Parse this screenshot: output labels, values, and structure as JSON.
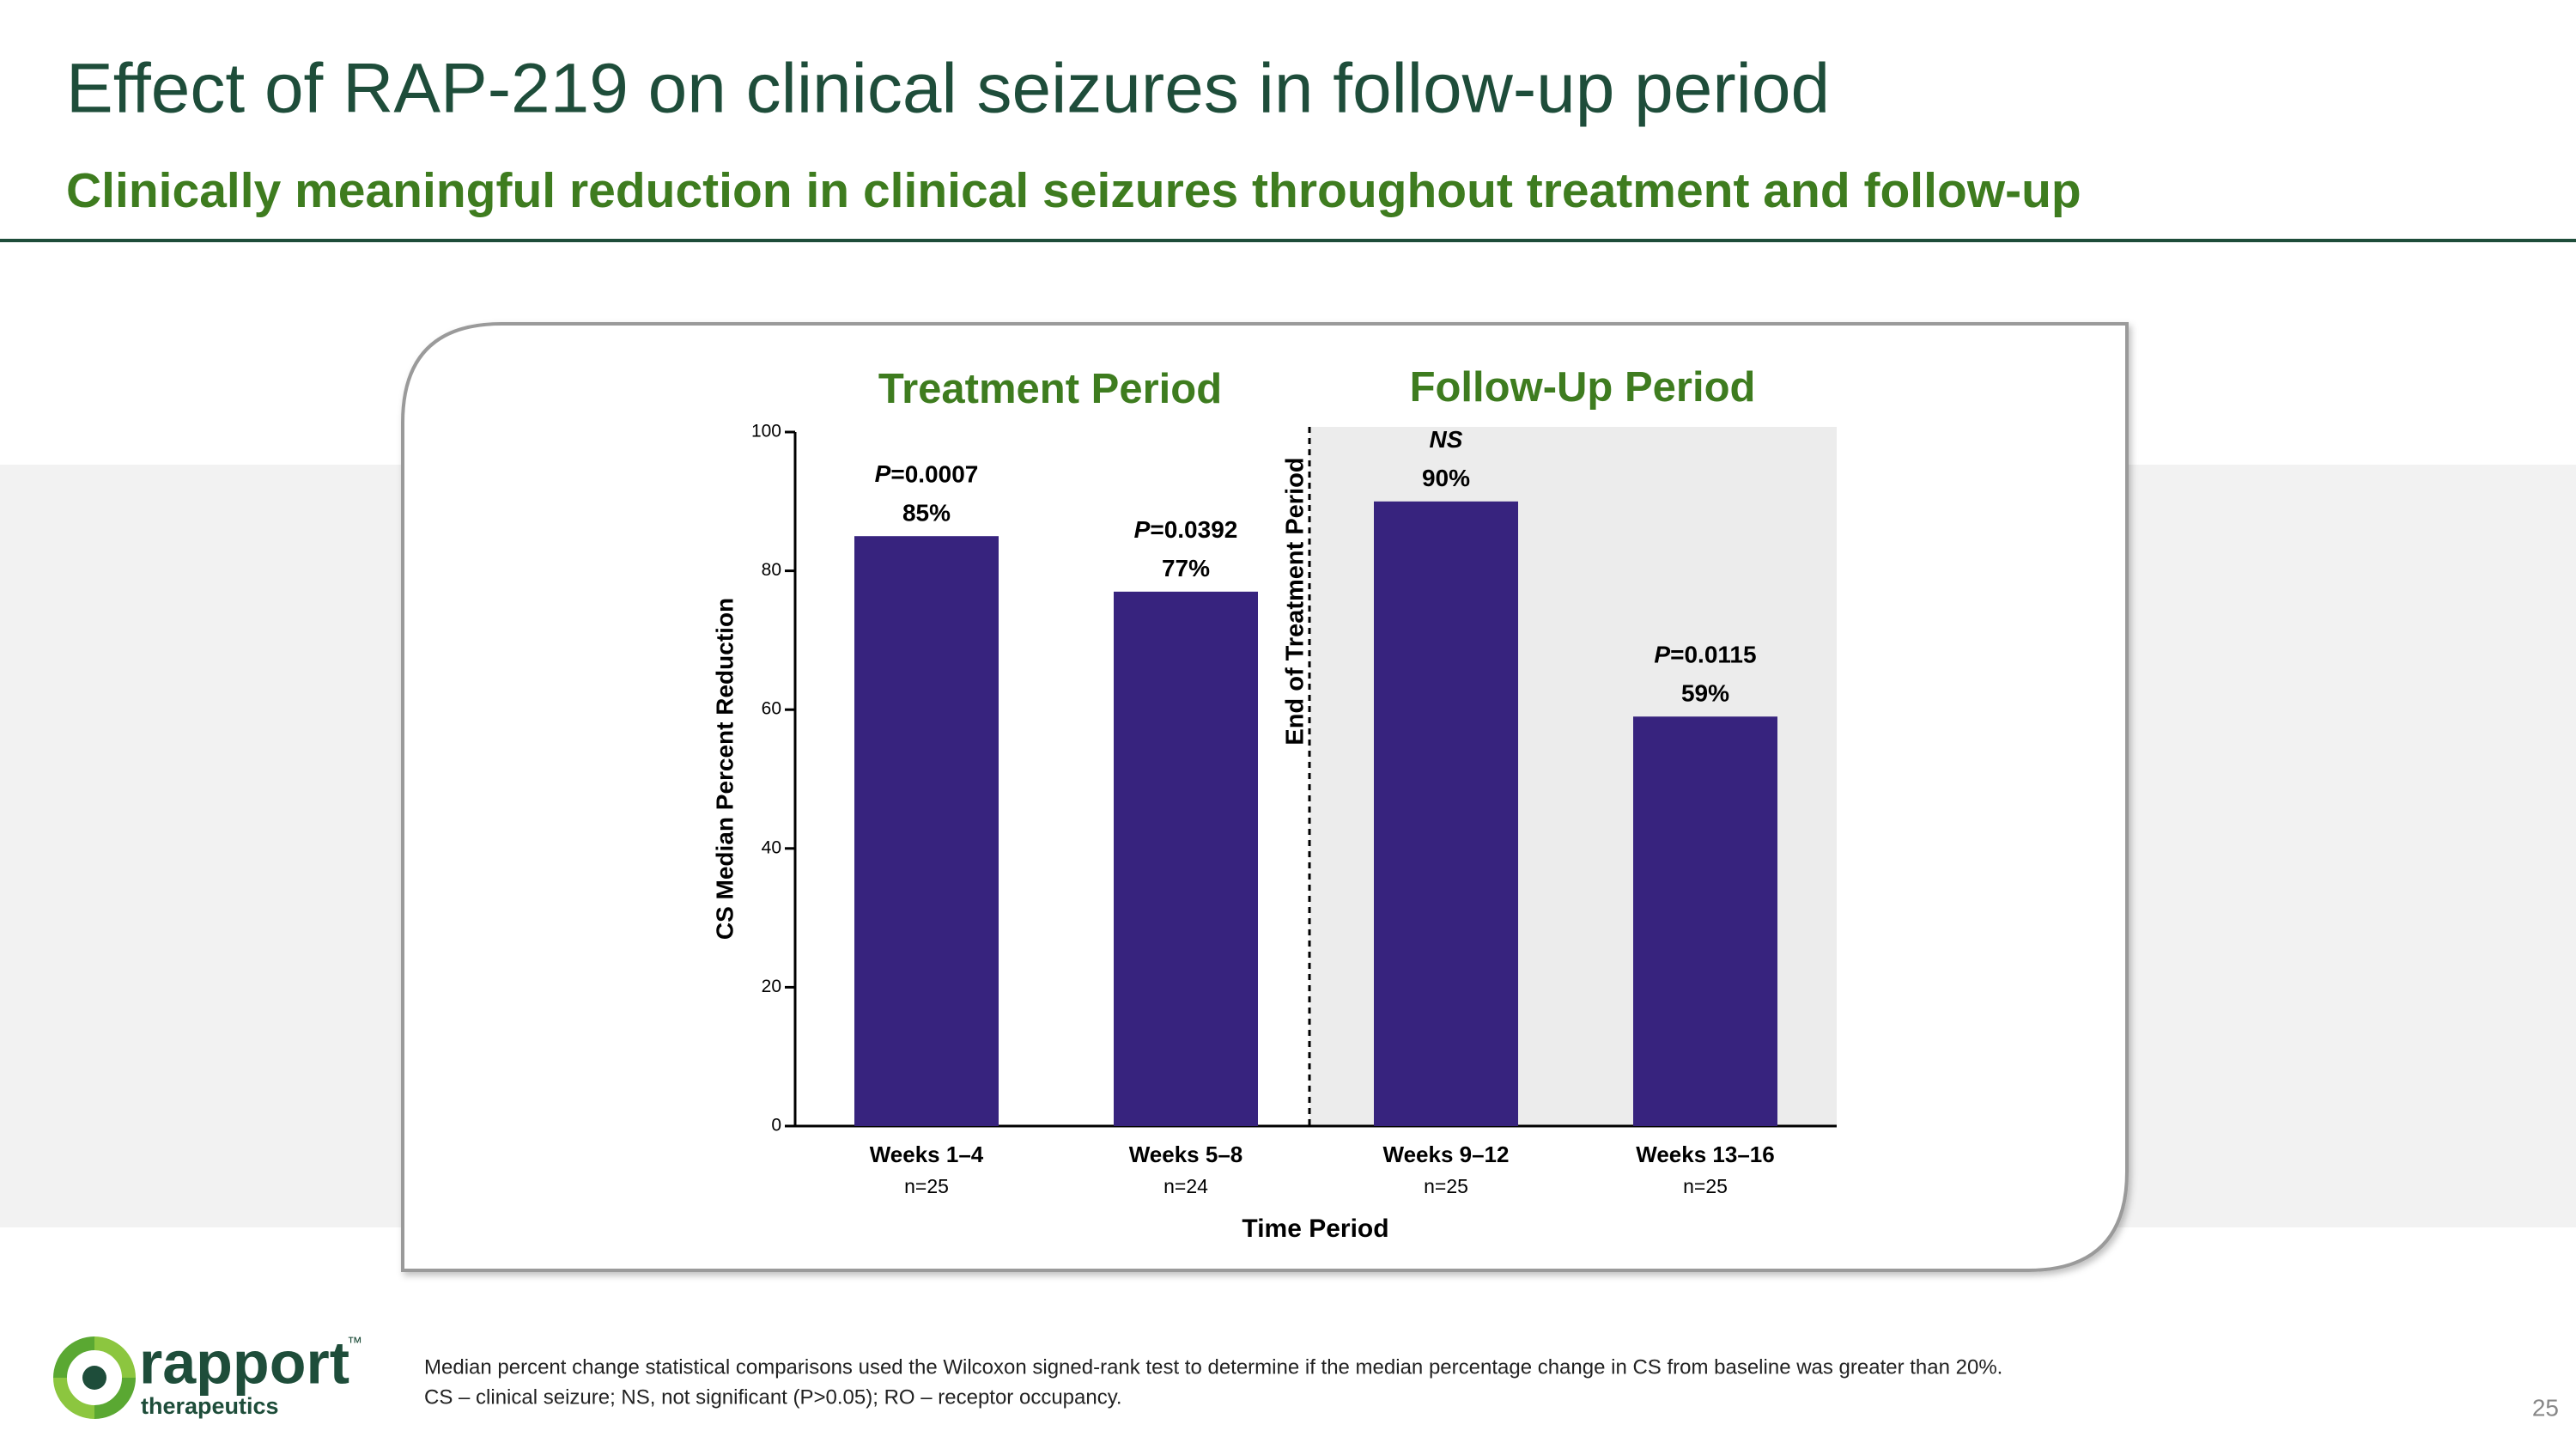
{
  "header": {
    "title": "Effect of RAP-219 on clinical seizures in follow-up period",
    "subtitle": "Clinically meaningful reduction in clinical seizures throughout treatment and follow-up"
  },
  "chart_data": {
    "type": "bar",
    "period_labels": [
      "Treatment Period",
      "Follow-Up Period"
    ],
    "divider_label": "End of Treatment Period",
    "categories": [
      "Weeks 1–4",
      "Weeks 5–8",
      "Weeks 9–12",
      "Weeks 13–16"
    ],
    "n_labels": [
      "n=25",
      "n=24",
      "n=25",
      "n=25"
    ],
    "values": [
      85,
      77,
      90,
      59
    ],
    "value_labels": [
      "85%",
      "77%",
      "90%",
      "59%"
    ],
    "p_values": [
      "P=0.0007",
      "P=0.0392",
      "NS",
      "P=0.0115"
    ],
    "color": "#37237e",
    "ylabel": "CS Median Percent Reduction",
    "xlabel": "Time Period",
    "ylim": [
      0,
      100
    ],
    "yticks": [
      0,
      20,
      40,
      60,
      80,
      100
    ]
  },
  "footnotes": [
    "Median percent change statistical comparisons used the Wilcoxon signed-rank test to determine if the median percentage change in CS from baseline was greater than 20%.",
    "CS – clinical seizure; NS, not significant (P>0.05); RO – receptor occupancy."
  ],
  "logo": {
    "name": "rapport",
    "tagline": "therapeutics",
    "mark": "™"
  },
  "page_number": "25"
}
